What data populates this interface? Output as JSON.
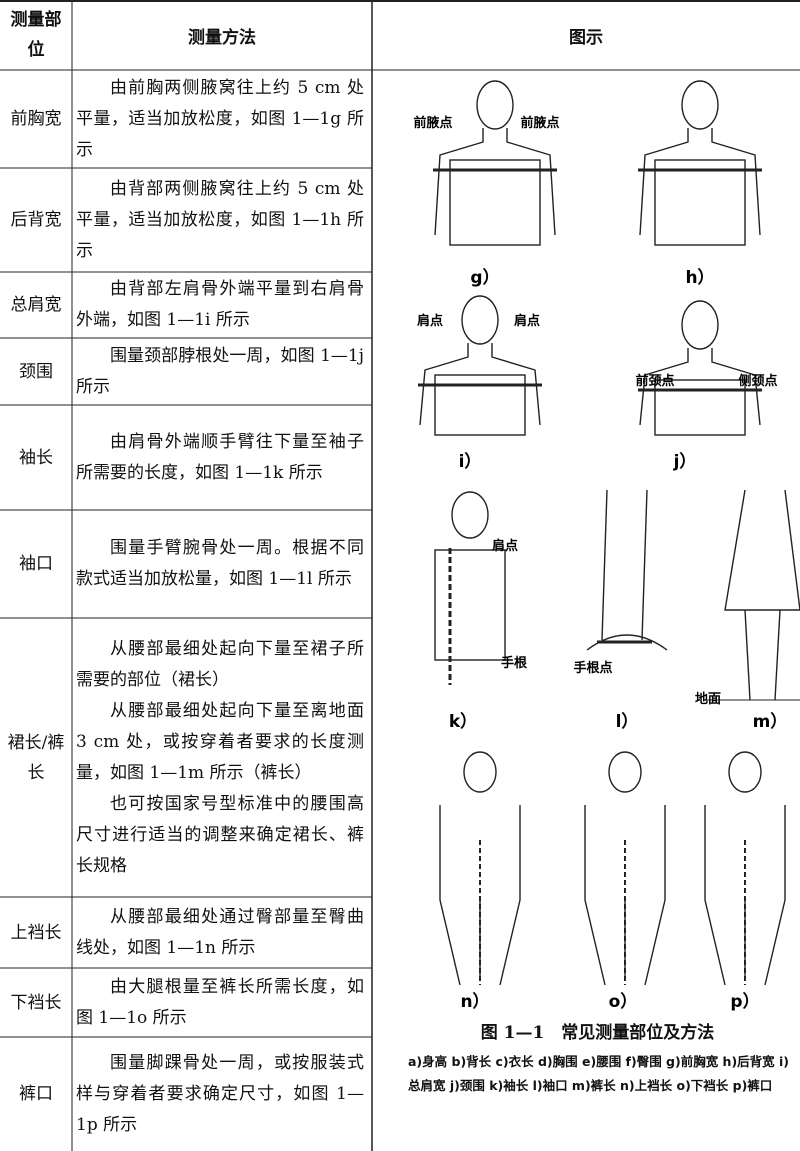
{
  "header": {
    "part": "测量部位",
    "method": "测量方法",
    "figure": "图示"
  },
  "rows": [
    {
      "part": "前胸宽",
      "method": [
        "由前胸两侧腋窝往上约 5 cm 处平量，适当加放松度，如图 1—1g 所示"
      ]
    },
    {
      "part": "后背宽",
      "method": [
        "由背部两侧腋窝往上约 5 cm 处平量，适当加放松度，如图 1—1h 所示"
      ]
    },
    {
      "part": "总肩宽",
      "method": [
        "由背部左肩骨外端平量到右肩骨外端，如图 1—1i 所示"
      ]
    },
    {
      "part": "颈围",
      "method": [
        "围量颈部脖根处一周，如图 1—1j 所示"
      ]
    },
    {
      "part": "袖长",
      "method": [
        "由肩骨外端顺手臂往下量至袖子所需要的长度，如图 1—1k 所示"
      ]
    },
    {
      "part": "袖口",
      "method": [
        "围量手臂腕骨处一周。根据不同款式适当加放松量，如图 1—1l 所示"
      ]
    },
    {
      "part": "裙长/裤长",
      "method": [
        "从腰部最细处起向下量至裙子所需要的部位（裙长）",
        "从腰部最细处起向下量至离地面 3 cm 处，或按穿着者要求的长度测量，如图 1—1m 所示（裤长）",
        "也可按国家号型标准中的腰围高尺寸进行适当的调整来确定裙长、裤长规格"
      ]
    },
    {
      "part": "上裆长",
      "method": [
        "从腰部最细处通过臀部量至臀曲线处，如图 1—1n 所示"
      ]
    },
    {
      "part": "下裆长",
      "method": [
        "由大腿根量至裤长所需长度，如图 1—1o 所示"
      ]
    },
    {
      "part": "裤口",
      "method": [
        "围量脚踝骨处一周，或按服装式样与穿着者要求确定尺寸，如图 1—1p 所示"
      ]
    }
  ],
  "figures": [
    {
      "label": "g）",
      "notes": [
        "前腋点",
        "前腋点"
      ]
    },
    {
      "label": "h）",
      "notes": []
    },
    {
      "label": "i）",
      "notes": [
        "肩点",
        "肩点"
      ]
    },
    {
      "label": "j）",
      "notes": [
        "前颈点",
        "侧颈点"
      ]
    },
    {
      "label": "k）",
      "notes": [
        "肩点",
        "手根"
      ]
    },
    {
      "label": "l）",
      "notes": [
        "手根点"
      ]
    },
    {
      "label": "m）",
      "notes": [
        "地面"
      ]
    },
    {
      "label": "n）",
      "notes": []
    },
    {
      "label": "o）",
      "notes": []
    },
    {
      "label": "p）",
      "notes": []
    }
  ],
  "caption": {
    "title": "图 1—1　常见测量部位及方法",
    "legend": "a)身高 b)背长 c)衣长 d)胸围 e)腰围 f)臀围 g)前胸宽 h)后背宽 i)总肩宽 j)颈围 k)袖长 l)袖口 m)裤长 n)上裆长 o)下裆长 p)裤口"
  }
}
